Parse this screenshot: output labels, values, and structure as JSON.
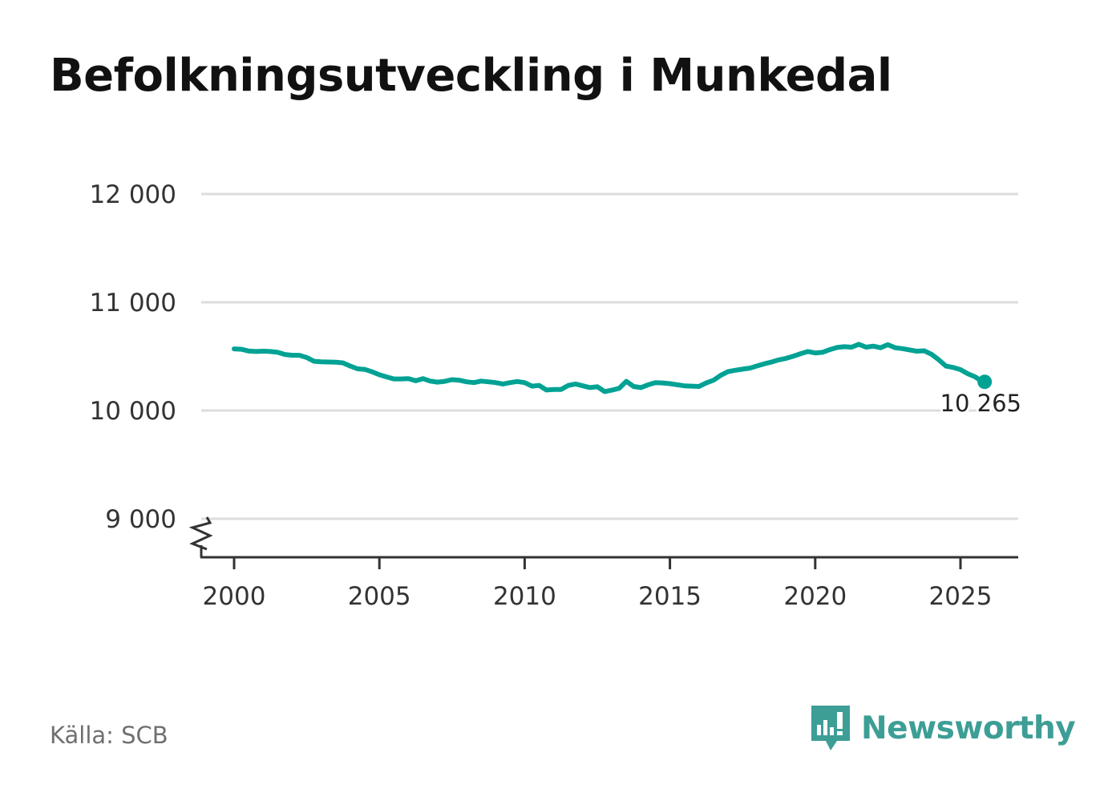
{
  "header": {
    "title": "Befolkningsutveckling i Munkedal"
  },
  "footer": {
    "source": "Källa: SCB",
    "brand": "Newsworthy"
  },
  "colors": {
    "line": "#00a294",
    "grid": "#dddddd",
    "axis": "#333333",
    "brand": "#3d9e96"
  },
  "chart_data": {
    "type": "line",
    "title": "Befolkningsutveckling i Munkedal",
    "xlabel": "",
    "ylabel": "",
    "xlim": [
      1999,
      2027
    ],
    "ylim": [
      8650,
      12000
    ],
    "grid": true,
    "axis_break": true,
    "yticks": [
      {
        "value": 9000,
        "label": "9 000"
      },
      {
        "value": 10000,
        "label": "10 000"
      },
      {
        "value": 11000,
        "label": "11 000"
      },
      {
        "value": 12000,
        "label": "12 000"
      }
    ],
    "xticks": [
      {
        "value": 2000,
        "label": "2000"
      },
      {
        "value": 2005,
        "label": "2005"
      },
      {
        "value": 2010,
        "label": "2010"
      },
      {
        "value": 2015,
        "label": "2015"
      },
      {
        "value": 2020,
        "label": "2020"
      },
      {
        "value": 2025,
        "label": "2025"
      }
    ],
    "end_value_label": "10 265",
    "series": [
      {
        "name": "Befolkning",
        "x": [
          2000.0,
          2000.25,
          2000.5,
          2000.75,
          2001.0,
          2001.25,
          2001.5,
          2001.75,
          2002.0,
          2002.25,
          2002.5,
          2002.75,
          2003.0,
          2003.25,
          2003.5,
          2003.75,
          2004.0,
          2004.25,
          2004.5,
          2004.75,
          2005.0,
          2005.25,
          2005.5,
          2005.75,
          2006.0,
          2006.25,
          2006.5,
          2006.75,
          2007.0,
          2007.25,
          2007.5,
          2007.75,
          2008.0,
          2008.25,
          2008.5,
          2008.75,
          2009.0,
          2009.25,
          2009.5,
          2009.75,
          2010.0,
          2010.25,
          2010.5,
          2010.75,
          2011.0,
          2011.25,
          2011.5,
          2011.75,
          2012.0,
          2012.25,
          2012.5,
          2012.75,
          2013.0,
          2013.25,
          2013.5,
          2013.75,
          2014.0,
          2014.25,
          2014.5,
          2014.75,
          2015.0,
          2015.25,
          2015.5,
          2015.75,
          2016.0,
          2016.25,
          2016.5,
          2016.75,
          2017.0,
          2017.25,
          2017.5,
          2017.75,
          2018.0,
          2018.25,
          2018.5,
          2018.75,
          2019.0,
          2019.25,
          2019.5,
          2019.75,
          2020.0,
          2020.25,
          2020.5,
          2020.75,
          2021.0,
          2021.25,
          2021.5,
          2021.75,
          2022.0,
          2022.25,
          2022.5,
          2022.75,
          2023.0,
          2023.25,
          2023.5,
          2023.75,
          2024.0,
          2024.25,
          2024.5,
          2024.75,
          2025.0,
          2025.25,
          2025.5,
          2025.75
        ],
        "values": [
          10570,
          10566,
          10550,
          10545,
          10548,
          10545,
          10538,
          10518,
          10510,
          10510,
          10490,
          10455,
          10450,
          10448,
          10447,
          10440,
          10410,
          10385,
          10380,
          10358,
          10330,
          10310,
          10292,
          10292,
          10295,
          10275,
          10295,
          10272,
          10262,
          10270,
          10285,
          10280,
          10265,
          10258,
          10272,
          10265,
          10258,
          10245,
          10258,
          10268,
          10258,
          10225,
          10232,
          10190,
          10195,
          10195,
          10232,
          10245,
          10228,
          10212,
          10220,
          10175,
          10188,
          10205,
          10270,
          10222,
          10212,
          10238,
          10258,
          10255,
          10248,
          10238,
          10228,
          10225,
          10222,
          10255,
          10280,
          10325,
          10360,
          10372,
          10382,
          10392,
          10412,
          10432,
          10448,
          10468,
          10482,
          10502,
          10525,
          10545,
          10532,
          10538,
          10562,
          10582,
          10590,
          10585,
          10612,
          10585,
          10595,
          10580,
          10608,
          10580,
          10572,
          10560,
          10548,
          10552,
          10520,
          10470,
          10410,
          10398,
          10378,
          10340,
          10312,
          10265
        ]
      }
    ]
  }
}
